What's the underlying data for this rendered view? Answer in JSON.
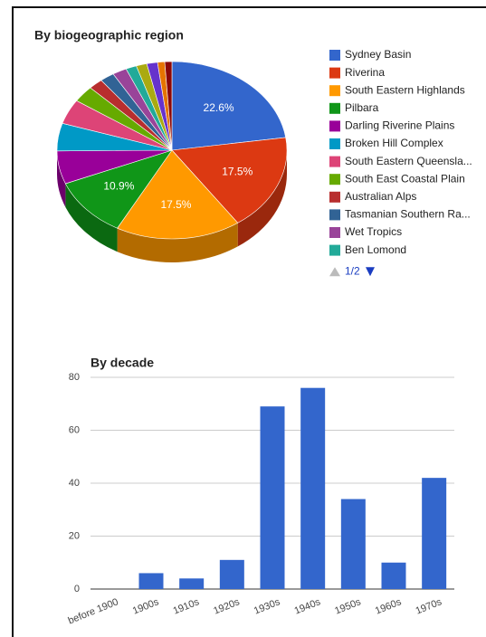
{
  "chart_data": [
    {
      "type": "pie",
      "title": "By biogeographic region",
      "categories": [
        "Sydney Basin",
        "Riverina",
        "South Eastern Highlands",
        "Pilbara",
        "Darling Riverine Plains",
        "Broken Hill Complex",
        "South Eastern Queensla...",
        "South East Coastal Plain",
        "Australian Alps",
        "Tasmanian Southern Ra...",
        "Wet Tropics",
        "Ben Lomond",
        null,
        null,
        null,
        null
      ],
      "values": [
        22.6,
        17.5,
        17.5,
        10.9,
        6,
        5,
        4.5,
        3,
        2,
        2,
        2,
        1.5,
        1.5,
        1.5,
        1,
        1
      ],
      "value_labels": [
        "22.6%",
        "17.5%",
        "17.5%",
        "10.9%",
        null,
        null,
        null,
        null,
        null,
        null,
        null,
        null,
        null,
        null,
        null,
        null
      ],
      "colors": [
        "#3366cc",
        "#dc3912",
        "#ff9900",
        "#109618",
        "#990099",
        "#0099c6",
        "#dd4477",
        "#66aa00",
        "#b82e2e",
        "#316395",
        "#994499",
        "#22aa99",
        "#aaaa11",
        "#6633cc",
        "#e67300",
        "#8b0707"
      ],
      "legend_page": "1/2"
    },
    {
      "type": "bar",
      "title": "By decade",
      "categories": [
        "before 1900",
        "1900s",
        "1910s",
        "1920s",
        "1930s",
        "1940s",
        "1950s",
        "1960s",
        "1970s"
      ],
      "values": [
        0,
        6,
        4,
        11,
        69,
        76,
        34,
        10,
        42
      ],
      "color": "#3366cc",
      "ylim": [
        0,
        80
      ],
      "yticks": [
        0,
        20,
        40,
        60,
        80
      ],
      "grid": true
    }
  ]
}
